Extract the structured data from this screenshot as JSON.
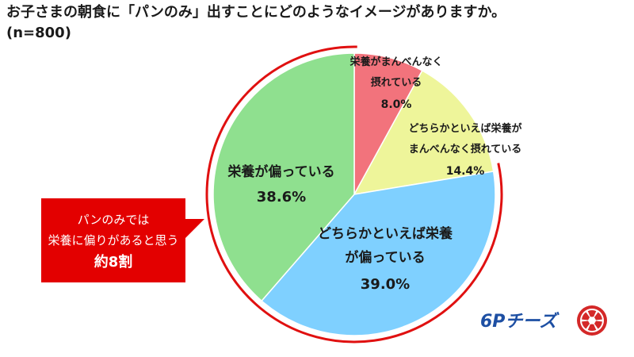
{
  "header": {
    "title": "お子さまの朝食に「パンのみ」出すことにどのようなイメージがありますか。",
    "sample": "(n=800)"
  },
  "chart_data": {
    "type": "pie",
    "slices": [
      {
        "label_lines": [
          "栄養がまんべんなく",
          "摂れている"
        ],
        "value": 8.0,
        "value_label": "8.0%",
        "color": "#f2737c"
      },
      {
        "label_lines": [
          "どちらかといえば栄養が",
          "まんべんなく摂れている"
        ],
        "value": 14.4,
        "value_label": "14.4%",
        "color": "#eef59a"
      },
      {
        "label_lines": [
          "どちらかといえば栄養",
          "が偏っている"
        ],
        "value": 39.0,
        "value_label": "39.0%",
        "color": "#7fd0ff"
      },
      {
        "label_lines": [
          "栄養が偏っている"
        ],
        "value": 38.6,
        "value_label": "38.6%",
        "color": "#8fe08f"
      }
    ],
    "highlight_color": "#e01010"
  },
  "callout": {
    "line1": "パンのみでは",
    "line2": "栄養に偏りがあると思う",
    "line3": "約8割",
    "color": "#e30000"
  },
  "logo": {
    "text": "6Pチーズ",
    "brand_color": "#1d4fa3",
    "accent_color": "#d42828"
  }
}
